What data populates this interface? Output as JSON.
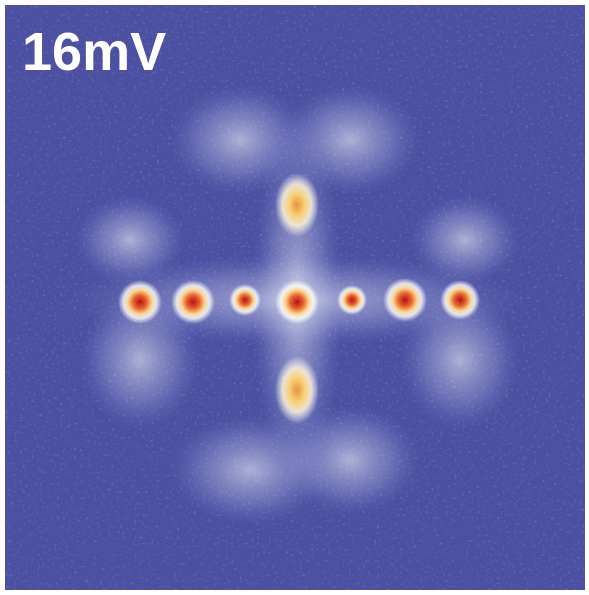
{
  "label": "16mV"
}
